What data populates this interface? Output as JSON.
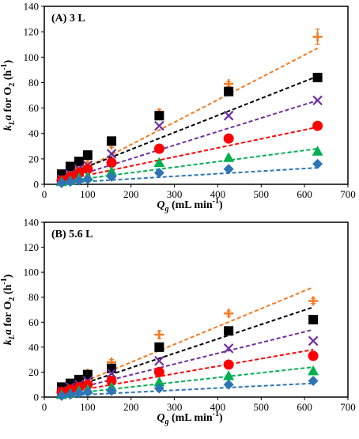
{
  "chart_data": [
    {
      "type": "scatter",
      "panel_label": "(A) 3 L",
      "ylabel": "kLa for O2 (h-1)",
      "xlabel": "Qg (mL min-1)",
      "xlim": [
        0,
        700
      ],
      "ylim": [
        0,
        140
      ],
      "x_ticks": [
        "0",
        "100",
        "200",
        "300",
        "400",
        "500",
        "600",
        "700"
      ],
      "y_ticks": [
        "0",
        "20",
        "40",
        "60",
        "80",
        "100",
        "120",
        "140"
      ],
      "grid": false,
      "series": [
        {
          "marker": "plus",
          "color": "#F47A20",
          "x": [
            40,
            60,
            80,
            100,
            155,
            265,
            425,
            630
          ],
          "y": [
            4,
            8,
            13,
            17,
            31,
            56,
            79,
            116
          ],
          "errors": [
            1,
            1,
            1,
            2,
            2,
            3,
            2,
            6
          ],
          "fit": [
            [
              40,
              3
            ],
            [
              630,
              107
            ]
          ]
        },
        {
          "marker": "square",
          "color": "#000000",
          "x": [
            40,
            60,
            80,
            100,
            155,
            265,
            425,
            630
          ],
          "y": [
            8,
            14,
            18,
            23,
            34,
            54,
            73,
            84
          ],
          "fit": [
            [
              40,
              6
            ],
            [
              630,
              85
            ]
          ]
        },
        {
          "marker": "cross",
          "color": "#7030A0",
          "x": [
            40,
            60,
            80,
            100,
            155,
            265,
            425,
            630
          ],
          "y": [
            4,
            8,
            12,
            15,
            24,
            46,
            54,
            66
          ],
          "fit": [
            [
              40,
              3
            ],
            [
              630,
              66
            ]
          ]
        },
        {
          "marker": "circle",
          "color": "#FF0000",
          "x": [
            40,
            60,
            80,
            100,
            155,
            265,
            425,
            630
          ],
          "y": [
            3,
            6,
            9,
            12,
            17,
            28,
            36,
            46
          ],
          "fit": [
            [
              40,
              3
            ],
            [
              630,
              45
            ]
          ]
        },
        {
          "marker": "triangle",
          "color": "#00B050",
          "x": [
            40,
            60,
            80,
            100,
            155,
            265,
            425,
            630
          ],
          "y": [
            2,
            3,
            5,
            6,
            10,
            17,
            21,
            26
          ],
          "fit": [
            [
              40,
              2
            ],
            [
              630,
              28
            ]
          ]
        },
        {
          "marker": "diamond",
          "color": "#2E75B6",
          "x": [
            40,
            60,
            80,
            100,
            155,
            265,
            425,
            630
          ],
          "y": [
            1,
            2,
            3,
            4,
            6,
            9,
            12,
            16
          ],
          "fit": [
            [
              40,
              1
            ],
            [
              630,
              13
            ]
          ]
        }
      ]
    },
    {
      "type": "scatter",
      "panel_label": "(B) 5.6 L",
      "ylabel": "kLa for O2 (h-1)",
      "xlabel": "Qg (mL min-1)",
      "xlim": [
        0,
        700
      ],
      "ylim": [
        0,
        140
      ],
      "x_ticks": [
        "0",
        "100",
        "200",
        "300",
        "400",
        "500",
        "600",
        "700"
      ],
      "y_ticks": [
        "0",
        "20",
        "40",
        "60",
        "80",
        "100",
        "120",
        "140"
      ],
      "grid": false,
      "series": [
        {
          "marker": "plus",
          "color": "#F47A20",
          "x": [
            40,
            60,
            80,
            100,
            155,
            265,
            425,
            620
          ],
          "y": [
            6,
            10,
            14,
            19,
            28,
            50,
            67,
            77
          ],
          "errors": [
            1,
            1,
            1,
            2,
            2,
            3,
            2,
            2
          ],
          "fit": [
            [
              40,
              5
            ],
            [
              620,
              88
            ]
          ]
        },
        {
          "marker": "square",
          "color": "#000000",
          "x": [
            40,
            60,
            80,
            100,
            155,
            265,
            425,
            620
          ],
          "y": [
            8,
            11,
            14,
            18,
            23,
            40,
            53,
            62
          ],
          "fit": [
            [
              40,
              5
            ],
            [
              620,
              72
            ]
          ]
        },
        {
          "marker": "cross",
          "color": "#7030A0",
          "x": [
            40,
            60,
            80,
            100,
            155,
            265,
            425,
            620
          ],
          "y": [
            5,
            8,
            10,
            13,
            19,
            29,
            39,
            45
          ],
          "fit": [
            [
              40,
              4
            ],
            [
              620,
              54
            ]
          ]
        },
        {
          "marker": "circle",
          "color": "#FF0000",
          "x": [
            40,
            60,
            80,
            100,
            155,
            265,
            425,
            620
          ],
          "y": [
            4,
            6,
            8,
            10,
            13,
            20,
            26,
            33
          ],
          "fit": [
            [
              40,
              3
            ],
            [
              620,
              38
            ]
          ]
        },
        {
          "marker": "triangle",
          "color": "#00B050",
          "x": [
            40,
            60,
            80,
            100,
            155,
            265,
            425,
            620
          ],
          "y": [
            2,
            3,
            5,
            6,
            8,
            12,
            17,
            21
          ],
          "fit": [
            [
              40,
              2
            ],
            [
              620,
              24
            ]
          ]
        },
        {
          "marker": "diamond",
          "color": "#2E75B6",
          "x": [
            40,
            60,
            80,
            100,
            155,
            265,
            425,
            620
          ],
          "y": [
            1,
            2,
            3,
            4,
            5,
            7,
            10,
            13
          ],
          "fit": [
            [
              40,
              1
            ],
            [
              620,
              11
            ]
          ]
        }
      ]
    }
  ]
}
